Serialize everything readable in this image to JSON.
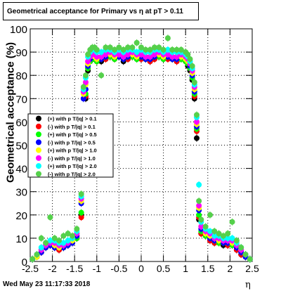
{
  "footer": {
    "timestamp": "Wed May 23 11:17:33 2018"
  },
  "chart_data": {
    "type": "scatter",
    "title": "Geometrical acceptance for Primary vs   η at pT > 0.11",
    "xlabel": "η",
    "ylabel": "Geometrical acceptance (%)",
    "xlim": [
      -2.5,
      2.5
    ],
    "ylim": [
      0,
      100
    ],
    "xticks": [
      -2.5,
      -2,
      -1.5,
      -1,
      -0.5,
      0,
      0.5,
      1,
      1.5,
      2,
      2.5
    ],
    "xtick_labels": [
      "-2.5",
      "-2",
      "-1.5",
      "-1",
      "-0.5",
      "0",
      "0.5",
      "1",
      "1.5",
      "2",
      "2.5"
    ],
    "yticks": [
      0,
      10,
      20,
      30,
      40,
      50,
      60,
      70,
      80,
      90,
      100
    ],
    "ytick_labels": [
      "0",
      "10",
      "20",
      "30",
      "40",
      "50",
      "60",
      "70",
      "80",
      "90",
      "100"
    ],
    "grid": true,
    "legend_position": "middle-left",
    "x": [
      -2.45,
      -2.35,
      -2.25,
      -2.15,
      -2.05,
      -1.95,
      -1.85,
      -1.75,
      -1.65,
      -1.55,
      -1.45,
      -1.35,
      -1.3,
      -1.25,
      -1.2,
      -1.15,
      -1.1,
      -1.05,
      -1.0,
      -0.9,
      -0.8,
      -0.7,
      -0.6,
      -0.5,
      -0.4,
      -0.3,
      -0.2,
      -0.1,
      0.0,
      0.1,
      0.2,
      0.3,
      0.4,
      0.5,
      0.6,
      0.7,
      0.8,
      0.9,
      1.0,
      1.05,
      1.1,
      1.15,
      1.2,
      1.25,
      1.3,
      1.35,
      1.45,
      1.55,
      1.65,
      1.75,
      1.85,
      1.95,
      2.05,
      2.15,
      2.25,
      2.35,
      2.45
    ],
    "series": [
      {
        "name": "(+) with p T/|q| > 0.1",
        "color": "#000000",
        "marker": "circle",
        "values": [
          1,
          2,
          4,
          6,
          7,
          6,
          5,
          6,
          7,
          8,
          10,
          20,
          55,
          70,
          82,
          86,
          87,
          87,
          86,
          86,
          87,
          88,
          87,
          88,
          86,
          87,
          88,
          87,
          88,
          87,
          86,
          87,
          88,
          87,
          88,
          87,
          86,
          87,
          86,
          84,
          82,
          78,
          70,
          53,
          18,
          12,
          11,
          9,
          8,
          8,
          7,
          7,
          7,
          5,
          3,
          2,
          1
        ]
      },
      {
        "name": "(-) with p T/|q| > 0.1",
        "color": "#ff0000",
        "marker": "circle",
        "values": [
          1,
          2,
          4,
          6,
          7,
          6,
          5,
          6,
          7,
          8,
          10,
          19,
          54,
          71,
          83,
          86,
          87,
          87,
          86,
          87,
          87,
          88,
          87,
          88,
          87,
          87,
          88,
          88,
          87,
          87,
          86,
          87,
          88,
          88,
          87,
          87,
          86,
          87,
          86,
          85,
          83,
          79,
          71,
          56,
          19,
          12,
          11,
          9,
          8,
          8,
          8,
          7,
          7,
          5,
          3,
          2,
          1
        ]
      },
      {
        "name": "(+) with p T/|q| > 0.5",
        "color": "#00ff00",
        "marker": "circle",
        "values": [
          1,
          2,
          5,
          6,
          7,
          7,
          6,
          6,
          7,
          8,
          10,
          21,
          56,
          72,
          83,
          86,
          88,
          87,
          86,
          87,
          88,
          88,
          87,
          88,
          87,
          88,
          88,
          87,
          88,
          87,
          87,
          88,
          88,
          87,
          88,
          87,
          87,
          87,
          86,
          85,
          83,
          79,
          72,
          57,
          20,
          13,
          11,
          10,
          9,
          8,
          8,
          8,
          7,
          6,
          4,
          2,
          1
        ]
      },
      {
        "name": "(-) with p T/|q| > 0.5",
        "color": "#0000ff",
        "marker": "circle",
        "values": [
          1,
          2,
          4,
          6,
          7,
          6,
          6,
          6,
          7,
          8,
          11,
          25,
          70,
          74,
          84,
          87,
          88,
          88,
          87,
          87,
          88,
          89,
          88,
          88,
          87,
          88,
          89,
          88,
          88,
          87,
          87,
          88,
          89,
          88,
          88,
          87,
          87,
          88,
          87,
          86,
          84,
          80,
          73,
          58,
          22,
          14,
          12,
          10,
          9,
          9,
          8,
          8,
          8,
          6,
          4,
          2,
          1
        ]
      },
      {
        "name": "(+) with p T/|q| > 1.0",
        "color": "#ffff00",
        "marker": "circle",
        "values": [
          1,
          2,
          5,
          7,
          8,
          7,
          6,
          7,
          8,
          9,
          12,
          26,
          72,
          76,
          85,
          88,
          89,
          88,
          87,
          88,
          89,
          89,
          88,
          89,
          88,
          89,
          89,
          88,
          89,
          88,
          88,
          89,
          89,
          88,
          89,
          88,
          88,
          88,
          87,
          86,
          85,
          81,
          74,
          59,
          23,
          15,
          12,
          11,
          10,
          9,
          9,
          9,
          8,
          7,
          5,
          3,
          1
        ]
      },
      {
        "name": "(-) with p T/|q| > 1.0",
        "color": "#ff00ff",
        "marker": "circle",
        "values": [
          1,
          3,
          5,
          7,
          8,
          8,
          7,
          7,
          8,
          10,
          12,
          27,
          73,
          77,
          86,
          88,
          89,
          89,
          88,
          88,
          89,
          90,
          89,
          89,
          88,
          89,
          90,
          89,
          89,
          88,
          88,
          89,
          90,
          89,
          89,
          88,
          88,
          89,
          88,
          87,
          85,
          82,
          75,
          60,
          24,
          15,
          13,
          12,
          10,
          10,
          9,
          9,
          9,
          7,
          5,
          3,
          1
        ]
      },
      {
        "name": "(+) with p T/|q| > 2.0",
        "color": "#00ffff",
        "marker": "circle",
        "values": [
          1,
          3,
          6,
          8,
          9,
          9,
          8,
          8,
          9,
          10,
          13,
          28,
          74,
          79,
          88,
          90,
          91,
          91,
          90,
          90,
          91,
          91,
          90,
          91,
          90,
          91,
          91,
          90,
          91,
          90,
          90,
          91,
          91,
          90,
          91,
          90,
          90,
          90,
          89,
          88,
          86,
          83,
          76,
          62,
          33,
          17,
          14,
          13,
          11,
          11,
          10,
          10,
          10,
          8,
          6,
          3,
          1
        ]
      },
      {
        "name": "(-) with p T/|q| > 2.0",
        "color": "#55d04b",
        "marker": "circle",
        "values": [
          1,
          3,
          10,
          8,
          19,
          10,
          9,
          11,
          12,
          11,
          14,
          29,
          75,
          80,
          89,
          91,
          92,
          92,
          91,
          80,
          92,
          92,
          91,
          92,
          91,
          92,
          92,
          94,
          92,
          91,
          91,
          92,
          92,
          91,
          96,
          91,
          91,
          91,
          90,
          89,
          87,
          84,
          77,
          63,
          26,
          18,
          15,
          20,
          13,
          12,
          11,
          12,
          17,
          9,
          6,
          3,
          1
        ]
      }
    ]
  }
}
